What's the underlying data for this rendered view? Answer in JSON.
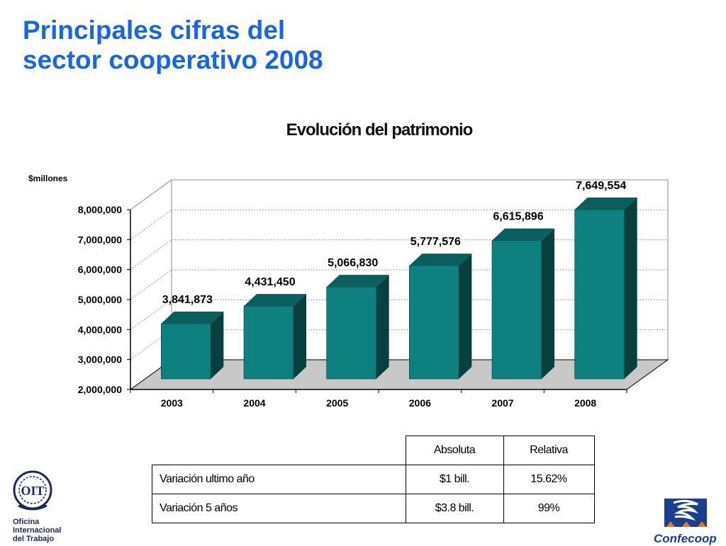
{
  "title": {
    "line1": "Principales cifras del",
    "line2": "sector cooperativo 2008"
  },
  "chart_data": {
    "type": "bar",
    "title": "Evolución del patrimonio",
    "ylabel": "$millones",
    "xlabel": "",
    "categories": [
      "2003",
      "2004",
      "2005",
      "2006",
      "2007",
      "2008"
    ],
    "values": [
      3841873,
      4431450,
      5066830,
      5777576,
      6615896,
      7649554
    ],
    "data_labels": [
      "3,841,873",
      "4,431,450",
      "5,066,830",
      "5,777,576",
      "6,615,896",
      "7,649,554"
    ],
    "y_ticks": [
      2000000,
      3000000,
      4000000,
      5000000,
      6000000,
      7000000,
      8000000
    ],
    "y_tick_labels": [
      "2,000,000",
      "3,000,000",
      "4,000,000",
      "5,000,000",
      "6,000,000",
      "7,000,000",
      "8,000,000"
    ],
    "ylim": [
      2000000,
      8000000
    ],
    "grid": true,
    "bar_color": "#0f8080",
    "bar_side_color": "#083f3f",
    "bar_top_color": "#0a5e5e"
  },
  "table": {
    "headers": [
      "",
      "Absoluta",
      "Relativa"
    ],
    "rows": [
      [
        "Variación ultimo año",
        "$1 bill.",
        "15.62%"
      ],
      [
        "Variación 5 años",
        "$3.8 bill.",
        "99%"
      ]
    ]
  },
  "logos": {
    "oit": {
      "mark": "OIT",
      "line1": "Oficina",
      "line2": "Internacional",
      "line3": "del Trabajo"
    },
    "confecoop": {
      "name": "Confecoop"
    }
  }
}
